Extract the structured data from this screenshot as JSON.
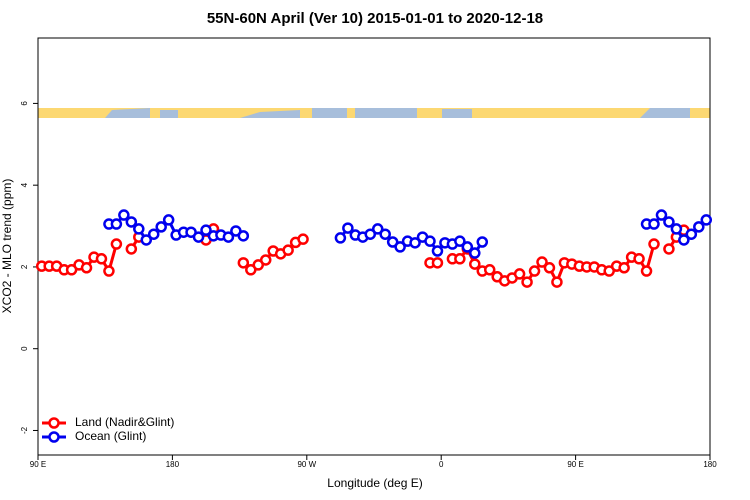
{
  "chart_data": {
    "type": "line",
    "title": "55N-60N April (Ver 10)   2015-01-01 to 2020-12-18",
    "xlabel": "Longitude (deg E)",
    "ylabel": "XCO2 - MLO trend (ppm)",
    "xlim": [
      90,
      540
    ],
    "xticks": [
      {
        "value": 90,
        "label": "90 E"
      },
      180,
      {
        "value": 270,
        "label": "90 W"
      },
      {
        "value": 360,
        "label": "0"
      },
      {
        "value": 450,
        "label": "90 E"
      },
      {
        "value": 540,
        "label": "180"
      }
    ],
    "ylim": [
      -2.6,
      7.6
    ],
    "yticks": [
      -2,
      0,
      2,
      4,
      6
    ],
    "legend": "bottom-left",
    "series": [
      {
        "name": "Land (Nadir&Glint)",
        "color": "#ff0000",
        "x": [
          92.5,
          97.5,
          102.5,
          107.5,
          112.5,
          117.5,
          122.5,
          127.5,
          132.5,
          137.5,
          142.5,
          147.5,
          152.5,
          157.5,
          162.5,
          202.5,
          207.5,
          212.5,
          227.5,
          232.5,
          237.5,
          242.5,
          247.5,
          252.5,
          257.5,
          262.5,
          267.5,
          272.5,
          352.5,
          357.5,
          362.5,
          367.5,
          372.5,
          377.5,
          382.5,
          387.5,
          392.5,
          397.5,
          402.5,
          407.5,
          412.5,
          417.5,
          422.5,
          427.5,
          432.5,
          437.5,
          442.5,
          447.5,
          452.5,
          457.5,
          462.5,
          467.5,
          472.5,
          477.5,
          482.5,
          487.5,
          492.5,
          497.5,
          502.5,
          507.5,
          512.5,
          517.5,
          522.5
        ],
        "values": [
          2.02,
          2.02,
          2.02,
          1.93,
          1.93,
          2.05,
          1.98,
          2.24,
          2.2,
          1.9,
          2.56,
          null,
          2.44,
          2.73,
          null,
          2.66,
          2.93,
          null,
          2.1,
          1.93,
          2.05,
          2.17,
          2.39,
          2.32,
          2.41,
          2.6,
          2.68,
          null,
          2.1,
          2.1,
          null,
          2.2,
          2.2,
          2.44,
          2.07,
          1.9,
          1.93,
          1.76,
          1.66,
          1.73,
          1.83,
          1.63,
          1.9,
          2.12,
          1.98,
          1.63,
          2.1,
          2.07,
          2.02,
          2.0,
          2.0,
          1.93,
          1.9,
          2.02,
          1.98,
          2.24,
          2.2,
          1.9,
          2.56,
          null,
          2.44,
          2.73,
          2.9
        ]
      },
      {
        "name": "Ocean (Glint)",
        "color": "#0000ee",
        "x": [
          137.5,
          142.5,
          147.5,
          152.5,
          157.5,
          162.5,
          167.5,
          172.5,
          177.5,
          182.5,
          187.5,
          192.5,
          197.5,
          202.5,
          207.5,
          212.5,
          217.5,
          222.5,
          227.5,
          232.5,
          292.5,
          297.5,
          302.5,
          307.5,
          312.5,
          317.5,
          322.5,
          327.5,
          332.5,
          337.5,
          342.5,
          347.5,
          352.5,
          357.5,
          362.5,
          367.5,
          372.5,
          377.5,
          382.5,
          387.5,
          392.5,
          497.5,
          502.5,
          507.5,
          512.5,
          517.5,
          522.5,
          527.5,
          532.5,
          537.5
        ],
        "values": [
          3.05,
          3.05,
          3.27,
          3.1,
          2.93,
          2.66,
          2.8,
          2.98,
          3.15,
          2.78,
          2.85,
          2.85,
          2.73,
          2.9,
          2.76,
          2.78,
          2.73,
          2.88,
          2.76,
          null,
          2.71,
          2.95,
          2.78,
          2.73,
          2.8,
          2.93,
          2.8,
          2.61,
          2.49,
          2.63,
          2.59,
          2.73,
          2.63,
          2.39,
          2.59,
          2.56,
          2.63,
          2.49,
          2.34,
          2.61,
          null,
          3.05,
          3.05,
          3.27,
          3.1,
          2.93,
          2.66,
          2.8,
          2.98,
          3.15
        ]
      }
    ]
  }
}
